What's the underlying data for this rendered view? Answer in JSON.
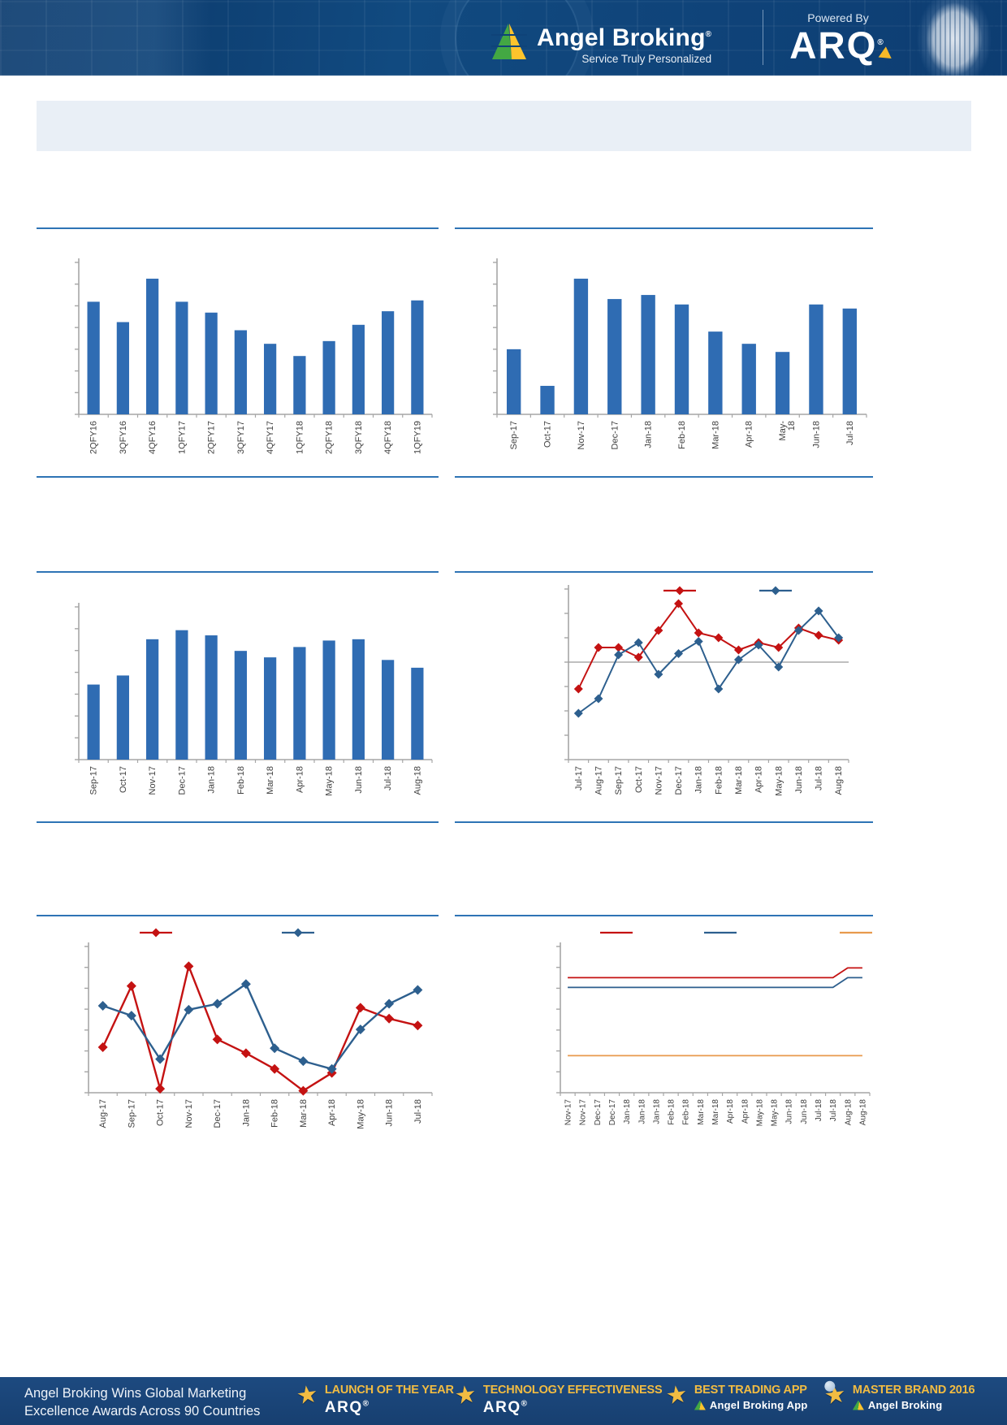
{
  "header": {
    "brand": "Angel Broking",
    "brand_reg": "®",
    "tagline": "Service Truly Personalized",
    "powered_by": "Powered By",
    "arq": "ARQ",
    "arq_reg": "®"
  },
  "icons": {
    "trophy_star": "★"
  },
  "colors": {
    "bar_blue": "#2f6cb3",
    "line_red": "#c41212",
    "line_blue": "#2d5f8e",
    "line_orange": "#e89a4d",
    "rule_blue": "#2e74b5",
    "axis_gray": "#a6a6a6",
    "zero_gray": "#9a9a9a",
    "label_gray": "#404040",
    "banner_bg": "#e9eff6",
    "header_navy": "#0e3f76",
    "footer_navy": "#1c4377",
    "award_gold": "#f2bc42",
    "logo_green": "#43a843",
    "logo_yellow": "#fdc42c"
  },
  "chart_data": [
    {
      "id": "chart1",
      "panel": "top-left",
      "type": "bar",
      "title": "",
      "categories": [
        "2QFY16",
        "3QFY16",
        "4QFY16",
        "1QFY17",
        "2QFY17",
        "3QFY17",
        "4QFY17",
        "1QFY18",
        "2QFY18",
        "3QFY18",
        "4QFY18",
        "1QFY19"
      ],
      "values": [
        83,
        68,
        100,
        83,
        75,
        62,
        52,
        43,
        54,
        66,
        76,
        84
      ],
      "xlabel": "",
      "ylabel": "",
      "ylim": [
        0,
        112
      ],
      "yticks": 8,
      "grid": false
    },
    {
      "id": "chart2",
      "panel": "top-right",
      "type": "bar",
      "title": "",
      "categories": [
        "Sep-17",
        "Oct-17",
        "Nov-17",
        "Dec-17",
        "Jan-18",
        "Feb-18",
        "Mar-18",
        "Apr-18",
        "May-\n18",
        "Jun-18",
        "Jul-18"
      ],
      "values": [
        48,
        21,
        100,
        85,
        88,
        81,
        61,
        52,
        46,
        81,
        78
      ],
      "xlabel": "",
      "ylabel": "",
      "ylim": [
        0,
        112
      ],
      "yticks": 8,
      "grid": false
    },
    {
      "id": "chart3",
      "panel": "middle-left",
      "type": "bar",
      "title": "",
      "categories": [
        "Sep-17",
        "Oct-17",
        "Nov-17",
        "Dec-17",
        "Jan-18",
        "Feb-18",
        "Mar-18",
        "Apr-18",
        "May-18",
        "Jun-18",
        "Jul-18",
        "Aug-18"
      ],
      "values": [
        58,
        65,
        93,
        100,
        96,
        84,
        79,
        87,
        92,
        93,
        77,
        71
      ],
      "xlabel": "",
      "ylabel": "",
      "ylim": [
        0,
        118
      ],
      "yticks": 8,
      "grid": false
    },
    {
      "id": "chart4",
      "panel": "middle-right",
      "type": "line",
      "title": "",
      "x": [
        "Jul-17",
        "Aug-17",
        "Sep-17",
        "Oct-17",
        "Nov-17",
        "Dec-17",
        "Jan-18",
        "Feb-18",
        "Mar-18",
        "Apr-18",
        "May-18",
        "Jun-18",
        "Jul-18",
        "Aug-18"
      ],
      "series": [
        {
          "name": "",
          "color": "#c41212",
          "values": [
            -1.1,
            0.6,
            0.6,
            0.2,
            1.3,
            2.4,
            1.2,
            1.0,
            0.5,
            0.8,
            0.6,
            1.4,
            1.1,
            0.9
          ]
        },
        {
          "name": "",
          "color": "#2d5f8e",
          "values": [
            -2.1,
            -1.5,
            0.3,
            0.8,
            -0.5,
            0.35,
            0.85,
            -1.1,
            0.1,
            0.7,
            -0.2,
            1.3,
            2.1,
            1.0
          ]
        }
      ],
      "xlabel": "",
      "ylabel": "",
      "ylim": [
        -4,
        3
      ],
      "yticks": 8,
      "zero_line": true,
      "markers": true,
      "legend": {
        "position": "top",
        "y": 10,
        "items": [
          {
            "x": 277,
            "color": "#c41212",
            "marker": true,
            "label": ""
          },
          {
            "x": 395,
            "color": "#2d5f8e",
            "marker": true,
            "label": ""
          }
        ]
      }
    },
    {
      "id": "chart5",
      "panel": "bottom-left",
      "type": "line",
      "title": "",
      "x": [
        "Aug-17",
        "Sep-17",
        "Oct-17",
        "Nov-17",
        "Dec-17",
        "Jan-18",
        "Feb-18",
        "Mar-18",
        "Apr-18",
        "May-18",
        "Jun-18",
        "Jul-18"
      ],
      "series": [
        {
          "name": "",
          "color": "#c41212",
          "values": [
            2.3,
            5.4,
            0.2,
            6.4,
            2.7,
            2.0,
            1.2,
            0.1,
            1.0,
            4.3,
            3.75,
            3.4
          ]
        },
        {
          "name": "",
          "color": "#2d5f8e",
          "values": [
            4.4,
            3.9,
            1.7,
            4.2,
            4.5,
            5.5,
            2.25,
            1.6,
            1.2,
            3.2,
            4.5,
            5.2
          ]
        }
      ],
      "xlabel": "",
      "ylabel": "",
      "ylim": [
        0,
        7.4
      ],
      "yticks": 8,
      "zero_line": false,
      "markers": true,
      "legend": {
        "position": "top",
        "y": 8,
        "items": [
          {
            "x": 147,
            "color": "#c41212",
            "marker": true,
            "label": ""
          },
          {
            "x": 322,
            "color": "#2d5f8e",
            "marker": true,
            "label": ""
          }
        ]
      }
    },
    {
      "id": "chart6",
      "panel": "bottom-right",
      "type": "line",
      "title": "",
      "x": [
        "Nov-17",
        "Nov-17",
        "Dec-17",
        "Dec-17",
        "Jan-18",
        "Jan-18",
        "Jan-18",
        "Feb-18",
        "Feb-18",
        "Mar-18",
        "Mar-18",
        "Apr-18",
        "Apr-18",
        "May-18",
        "May-18",
        "Jun-18",
        "Jun-18",
        "Jul-18",
        "Jul-18",
        "Aug-18",
        "Aug-18"
      ],
      "series": [
        {
          "name": "",
          "color": "#c41212",
          "values": [
            5.9,
            5.9,
            5.9,
            5.9,
            5.9,
            5.9,
            5.9,
            5.9,
            5.9,
            5.9,
            5.9,
            5.9,
            5.9,
            5.9,
            5.9,
            5.9,
            5.9,
            5.9,
            5.9,
            6.4,
            6.4
          ]
        },
        {
          "name": "",
          "color": "#2d5f8e",
          "values": [
            5.4,
            5.4,
            5.4,
            5.4,
            5.4,
            5.4,
            5.4,
            5.4,
            5.4,
            5.4,
            5.4,
            5.4,
            5.4,
            5.4,
            5.4,
            5.4,
            5.4,
            5.4,
            5.4,
            5.9,
            5.9
          ]
        },
        {
          "name": "",
          "color": "#e89a4d",
          "values": [
            1.9,
            1.9,
            1.9,
            1.9,
            1.9,
            1.9,
            1.9,
            1.9,
            1.9,
            1.9,
            1.9,
            1.9,
            1.9,
            1.9,
            1.9,
            1.9,
            1.9,
            1.9,
            1.9,
            1.9,
            1.9
          ]
        }
      ],
      "xlabel": "",
      "ylabel": "",
      "ylim": [
        0,
        7.5
      ],
      "yticks": 8,
      "zero_line": false,
      "markers": false,
      "legend": {
        "position": "top",
        "y": 8,
        "items": [
          {
            "x": 199,
            "color": "#c41212",
            "marker": false,
            "label": ""
          },
          {
            "x": 327,
            "color": "#2d5f8e",
            "marker": false,
            "label": ""
          },
          {
            "x": 494,
            "color": "#e89a4d",
            "marker": false,
            "label": ""
          }
        ]
      }
    }
  ],
  "footer": {
    "headline_line1": "Angel Broking Wins Global Marketing",
    "headline_line2": "Excellence Awards Across 90 Countries",
    "awards": [
      {
        "title": "LAUNCH OF THE YEAR",
        "subtitle": "ARQ",
        "subtitle_reg": "®",
        "logo": "arq"
      },
      {
        "title": "TECHNOLOGY EFFECTIVENESS",
        "subtitle": "ARQ",
        "subtitle_reg": "®",
        "logo": "arq"
      },
      {
        "title": "BEST TRADING APP",
        "subtitle": "Angel Broking App",
        "logo": "pyramid"
      },
      {
        "title": "MASTER BRAND 2016",
        "subtitle": "Angel Broking",
        "logo": "pyramid-globe"
      }
    ]
  }
}
